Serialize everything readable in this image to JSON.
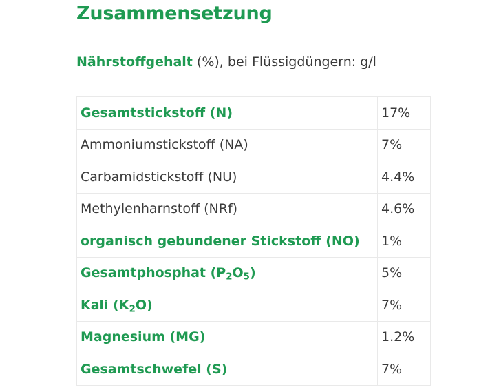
{
  "heading": "Zusammensetzung",
  "intro": {
    "strong": "Nährstoffgehalt",
    "rest": " (%), bei Flüssigdüngern: g/l"
  },
  "rows": [
    {
      "bold": true,
      "parts": [
        "Gesamtstickstoff (N)"
      ],
      "value": "17%"
    },
    {
      "bold": false,
      "parts": [
        "Ammoniumstickstoff (NA)"
      ],
      "value": "7%"
    },
    {
      "bold": false,
      "parts": [
        "Carbamidstickstoff (NU)"
      ],
      "value": "4.4%"
    },
    {
      "bold": false,
      "parts": [
        "Methylenharnstoff (NRf)"
      ],
      "value": "4.6%"
    },
    {
      "bold": true,
      "parts": [
        "organisch gebundener Stickstoff (NO)"
      ],
      "value": "1%"
    },
    {
      "bold": true,
      "parts": [
        "Gesamtphosphat (P",
        "2",
        "O",
        "5",
        ")"
      ],
      "value": "5%"
    },
    {
      "bold": true,
      "parts": [
        "Kali (K",
        "2",
        "O)"
      ],
      "value": "7%"
    },
    {
      "bold": true,
      "parts": [
        "Magnesium (MG)"
      ],
      "value": "1.2%"
    },
    {
      "bold": true,
      "parts": [
        "Gesamtschwefel (S)"
      ],
      "value": "7%"
    }
  ]
}
